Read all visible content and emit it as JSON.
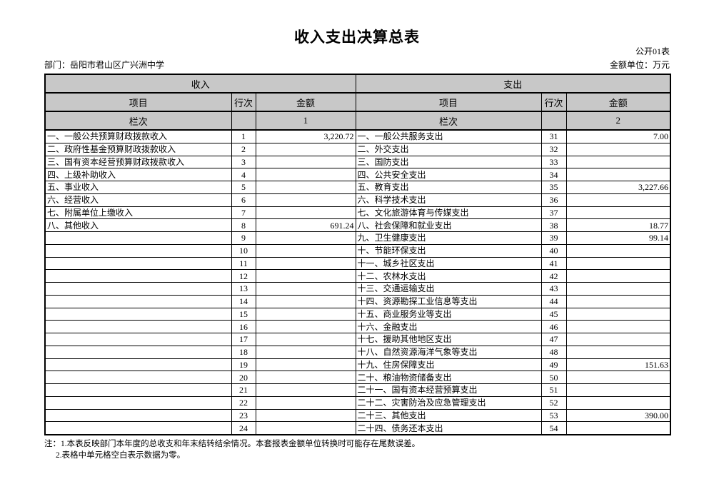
{
  "page": {
    "title": "收入支出决算总表",
    "table_code": "公开01表",
    "department_label": "部门：岳阳市君山区广兴洲中学",
    "unit_label": "金额单位：万元"
  },
  "colors": {
    "header_bg": "#c8c8c8",
    "border": "#000000",
    "page_bg": "#ffffff"
  },
  "table": {
    "section_headers": {
      "income": "收入",
      "expense": "支出"
    },
    "column_headers": {
      "item": "项目",
      "line_no": "行次",
      "amount": "金额"
    },
    "column_index_label": "栏次",
    "column_index": {
      "income": "1",
      "expense": "2"
    },
    "income_rows": [
      {
        "item": "一、一般公共预算财政拨款收入",
        "line": "1",
        "amount": "3,220.72"
      },
      {
        "item": "二、政府性基金预算财政拨款收入",
        "line": "2",
        "amount": ""
      },
      {
        "item": "三、国有资本经营预算财政拨款收入",
        "line": "3",
        "amount": ""
      },
      {
        "item": "四、上级补助收入",
        "line": "4",
        "amount": ""
      },
      {
        "item": "五、事业收入",
        "line": "5",
        "amount": ""
      },
      {
        "item": "六、经营收入",
        "line": "6",
        "amount": ""
      },
      {
        "item": "七、附属单位上缴收入",
        "line": "7",
        "amount": ""
      },
      {
        "item": "八、其他收入",
        "line": "8",
        "amount": "691.24"
      },
      {
        "item": "",
        "line": "9",
        "amount": ""
      },
      {
        "item": "",
        "line": "10",
        "amount": ""
      },
      {
        "item": "",
        "line": "11",
        "amount": ""
      },
      {
        "item": "",
        "line": "12",
        "amount": ""
      },
      {
        "item": "",
        "line": "13",
        "amount": ""
      },
      {
        "item": "",
        "line": "14",
        "amount": ""
      },
      {
        "item": "",
        "line": "15",
        "amount": ""
      },
      {
        "item": "",
        "line": "16",
        "amount": ""
      },
      {
        "item": "",
        "line": "17",
        "amount": ""
      },
      {
        "item": "",
        "line": "18",
        "amount": ""
      },
      {
        "item": "",
        "line": "19",
        "amount": ""
      },
      {
        "item": "",
        "line": "20",
        "amount": ""
      },
      {
        "item": "",
        "line": "21",
        "amount": ""
      },
      {
        "item": "",
        "line": "22",
        "amount": ""
      },
      {
        "item": "",
        "line": "23",
        "amount": ""
      },
      {
        "item": "",
        "line": "24",
        "amount": ""
      }
    ],
    "expense_rows": [
      {
        "item": "一、一般公共服务支出",
        "line": "31",
        "amount": "7.00"
      },
      {
        "item": "二、外交支出",
        "line": "32",
        "amount": ""
      },
      {
        "item": "三、国防支出",
        "line": "33",
        "amount": ""
      },
      {
        "item": "四、公共安全支出",
        "line": "34",
        "amount": ""
      },
      {
        "item": "五、教育支出",
        "line": "35",
        "amount": "3,227.66"
      },
      {
        "item": "六、科学技术支出",
        "line": "36",
        "amount": ""
      },
      {
        "item": "七、文化旅游体育与传媒支出",
        "line": "37",
        "amount": ""
      },
      {
        "item": "八、社会保障和就业支出",
        "line": "38",
        "amount": "18.77"
      },
      {
        "item": "九、卫生健康支出",
        "line": "39",
        "amount": "99.14"
      },
      {
        "item": "十、节能环保支出",
        "line": "40",
        "amount": ""
      },
      {
        "item": "十一、城乡社区支出",
        "line": "41",
        "amount": ""
      },
      {
        "item": "十二、农林水支出",
        "line": "42",
        "amount": ""
      },
      {
        "item": "十三、交通运输支出",
        "line": "43",
        "amount": ""
      },
      {
        "item": "十四、资源勘探工业信息等支出",
        "line": "44",
        "amount": ""
      },
      {
        "item": "十五、商业服务业等支出",
        "line": "45",
        "amount": ""
      },
      {
        "item": "十六、金融支出",
        "line": "46",
        "amount": ""
      },
      {
        "item": "十七、援助其他地区支出",
        "line": "47",
        "amount": ""
      },
      {
        "item": "十八、自然资源海洋气象等支出",
        "line": "48",
        "amount": ""
      },
      {
        "item": "十九、住房保障支出",
        "line": "49",
        "amount": "151.63"
      },
      {
        "item": "二十、粮油物资储备支出",
        "line": "50",
        "amount": ""
      },
      {
        "item": "二十一、国有资本经营预算支出",
        "line": "51",
        "amount": ""
      },
      {
        "item": "二十二、灾害防治及应急管理支出",
        "line": "52",
        "amount": ""
      },
      {
        "item": "二十三、其他支出",
        "line": "53",
        "amount": "390.00"
      },
      {
        "item": "二十四、债务还本支出",
        "line": "54",
        "amount": ""
      }
    ]
  },
  "notes": [
    "注：1.本表反映部门本年度的总收支和年末结转结余情况。本套报表金额单位转换时可能存在尾数误差。",
    "2.表格中单元格空白表示数据为零。"
  ]
}
